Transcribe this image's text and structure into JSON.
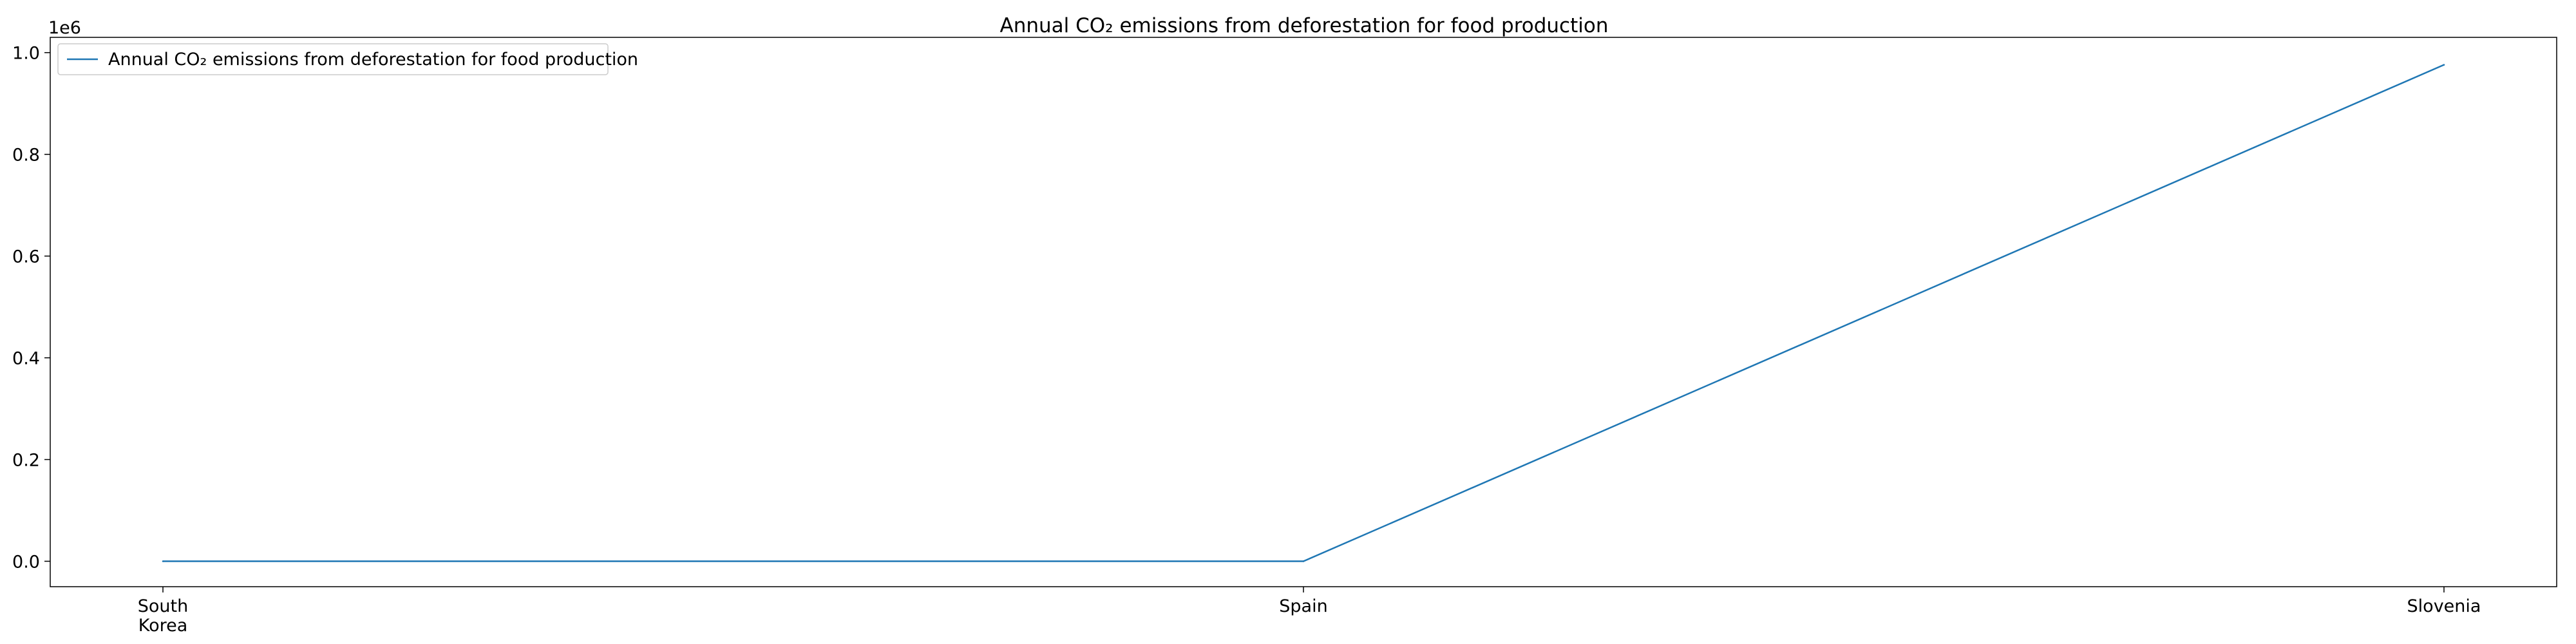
{
  "chart_data": {
    "type": "line",
    "title": "Annual CO₂ emissions from deforestation for food production",
    "categories": [
      "South Korea",
      "Spain",
      "Slovenia"
    ],
    "category_lines": [
      [
        "South",
        "Korea"
      ],
      [
        "Spain"
      ],
      [
        "Slovenia"
      ]
    ],
    "series": [
      {
        "name": "Annual CO₂ emissions from deforestation for food production",
        "values": [
          0,
          0,
          976000
        ],
        "color": "#1f77b4"
      }
    ],
    "xlabel": "",
    "ylabel": "",
    "ylim": [
      -50000,
      1030000
    ],
    "yticks": [
      0,
      200000,
      400000,
      600000,
      800000,
      1000000
    ],
    "ytick_labels": [
      "0.0",
      "0.2",
      "0.4",
      "0.6",
      "0.8",
      "1.0"
    ],
    "y_offset_label": "1e6",
    "grid": false,
    "legend_position": "top-left"
  }
}
